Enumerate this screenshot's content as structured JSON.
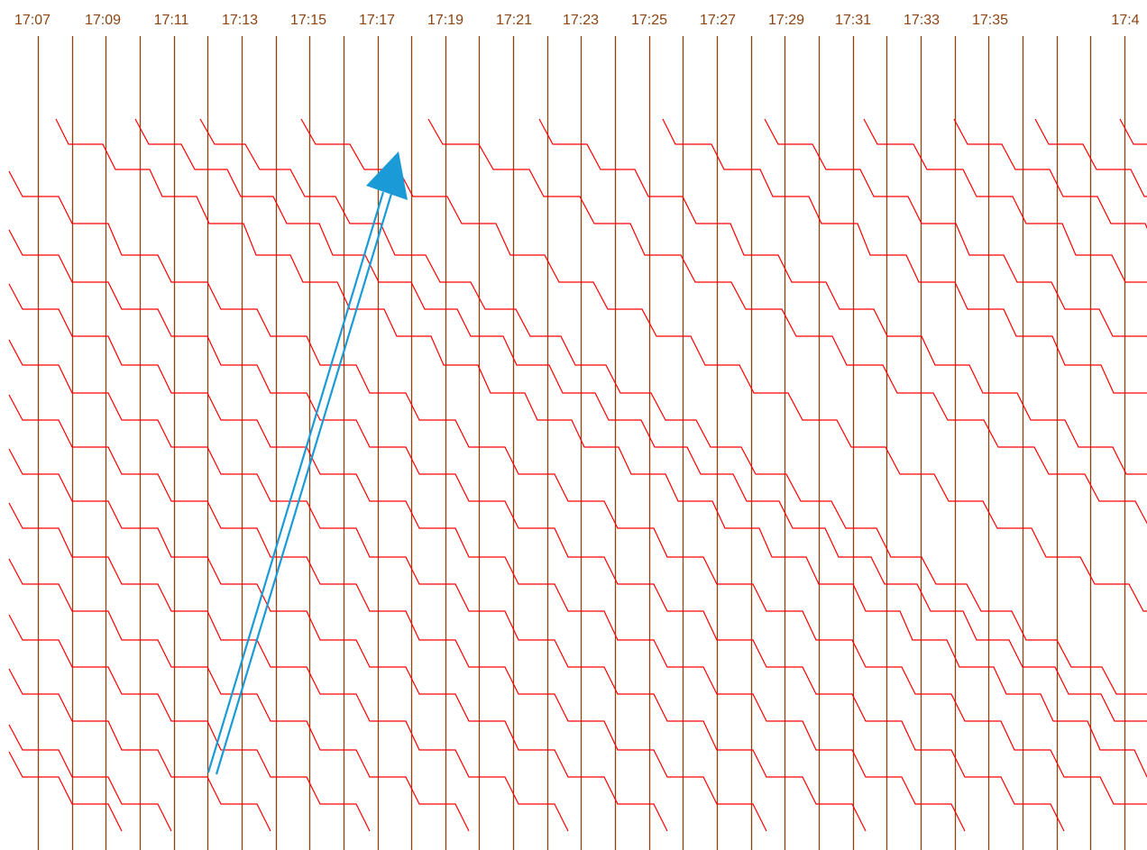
{
  "time_axis": {
    "labels": [
      "17:07",
      "17:09",
      "17:11",
      "17:13",
      "17:15",
      "17:17",
      "17:19",
      "17:21",
      "17:23",
      "17:25",
      "17:27",
      "17:29",
      "17:31",
      "17:33",
      "17:35",
      "17:4"
    ]
  },
  "colors": {
    "gridline": "#8B4513",
    "label": "#8B4513",
    "train_line": "#ff0000",
    "arrow": "#1a9bd7",
    "background": "#ffffff"
  }
}
